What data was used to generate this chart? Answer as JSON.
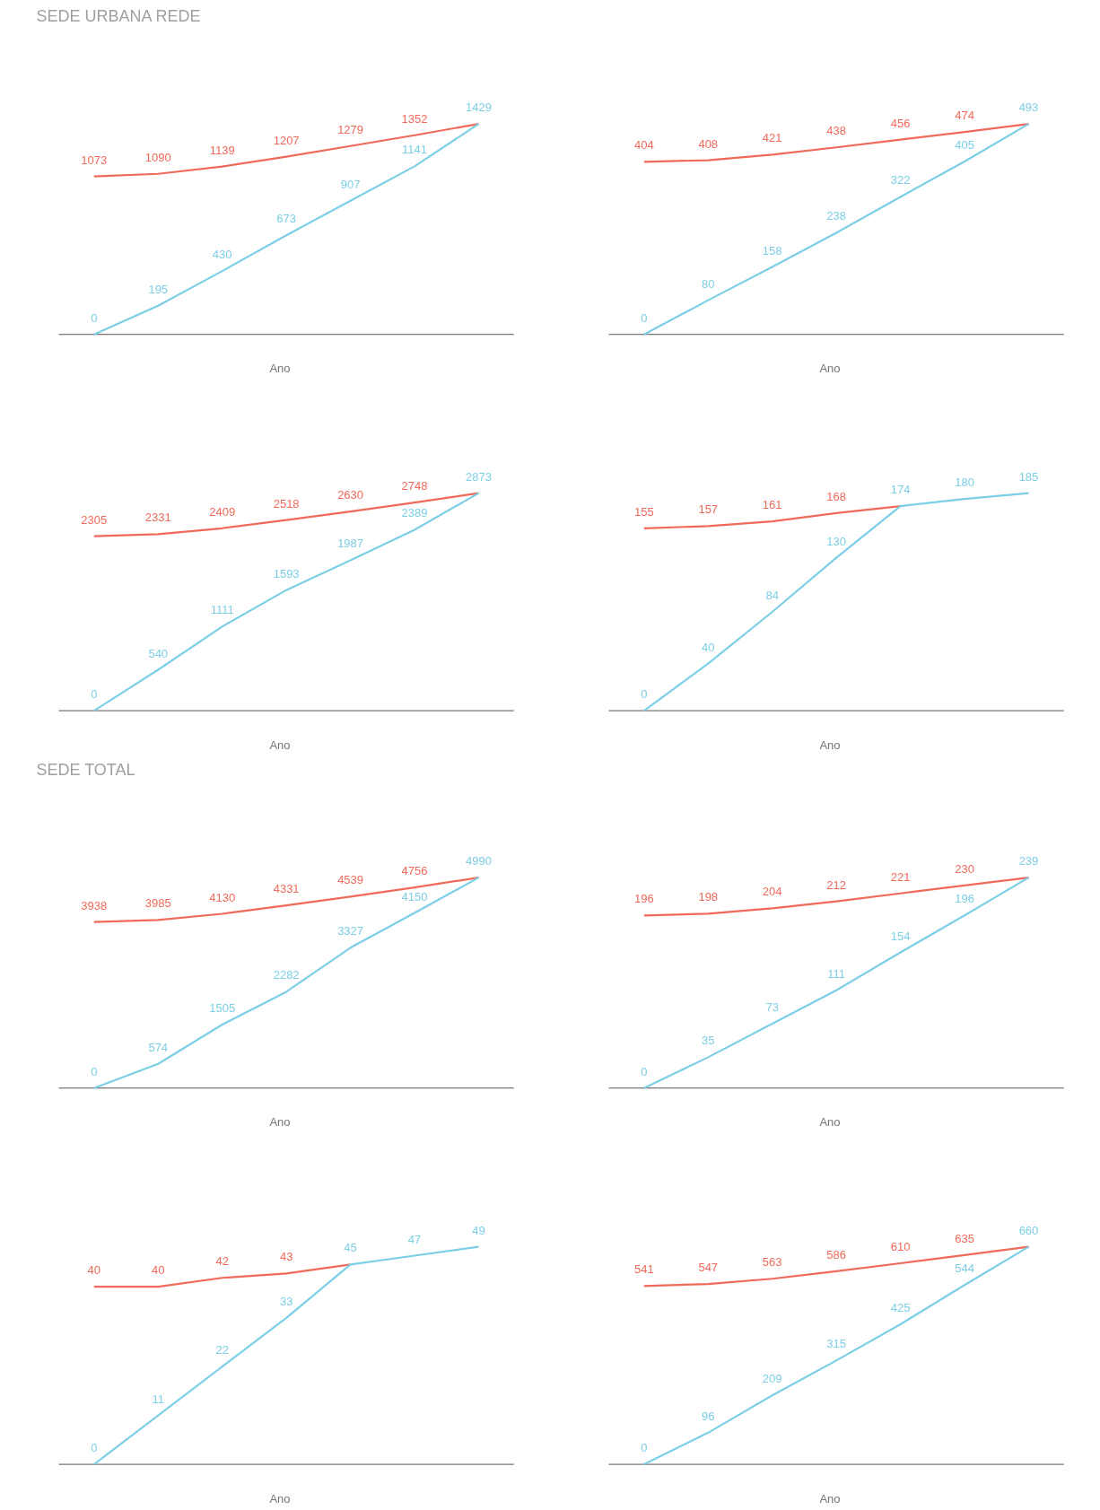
{
  "chart_data": [
    {
      "type": "line",
      "title": "SEDE URBANA REDE",
      "xlabel": "Ano",
      "categories": [
        null,
        null,
        null,
        null,
        null,
        null,
        null
      ],
      "series": [
        {
          "color": "#f0695a",
          "values": [
            1073,
            1090,
            1139,
            1207,
            1279,
            1352,
            1429
          ],
          "value_labels": [
            "1073",
            "1090",
            "1139",
            "1207",
            "1279",
            "1352",
            null
          ]
        },
        {
          "color": "#7ccfe6",
          "values": [
            0,
            195,
            430,
            673,
            907,
            1141,
            1429
          ],
          "value_labels": [
            "0",
            "195",
            "430",
            "673",
            "907",
            "1141",
            "1429"
          ]
        }
      ]
    },
    {
      "type": "line",
      "xlabel": "Ano",
      "categories": [
        null,
        null,
        null,
        null,
        null,
        null,
        null
      ],
      "series": [
        {
          "color": "#f0695a",
          "values": [
            404,
            408,
            421,
            438,
            456,
            474,
            493
          ],
          "value_labels": [
            "404",
            "408",
            "421",
            "438",
            "456",
            "474",
            null
          ]
        },
        {
          "color": "#7ccfe6",
          "values": [
            0,
            80,
            158,
            238,
            322,
            405,
            493
          ],
          "value_labels": [
            "0",
            "80",
            "158",
            "238",
            "322",
            "405",
            "493"
          ]
        }
      ]
    },
    {
      "type": "line",
      "xlabel": "Ano",
      "categories": [
        null,
        null,
        null,
        null,
        null,
        null,
        null
      ],
      "series": [
        {
          "color": "#f0695a",
          "values": [
            2305,
            2331,
            2409,
            2518,
            2630,
            2748,
            2873
          ],
          "value_labels": [
            "2305",
            "2331",
            "2409",
            "2518",
            "2630",
            "2748",
            null
          ]
        },
        {
          "color": "#7ccfe6",
          "values": [
            0,
            540,
            1111,
            1593,
            1987,
            2389,
            2873
          ],
          "value_labels": [
            "0",
            "540",
            "1111",
            "1593",
            "1987",
            "2389",
            "2873"
          ]
        }
      ]
    },
    {
      "type": "line",
      "xlabel": "Ano",
      "categories": [
        null,
        null,
        null,
        null,
        null,
        null,
        null
      ],
      "series": [
        {
          "color": "#f0695a",
          "values": [
            155,
            157,
            161,
            168,
            174,
            null,
            null
          ],
          "value_labels": [
            "155",
            "157",
            "161",
            "168",
            null,
            null,
            null
          ]
        },
        {
          "color": "#7ccfe6",
          "values": [
            0,
            40,
            84,
            130,
            174,
            180,
            185
          ],
          "value_labels": [
            "0",
            "40",
            "84",
            "130",
            "174",
            "180",
            "185"
          ]
        }
      ]
    },
    {
      "type": "line",
      "title": "SEDE TOTAL",
      "xlabel": "Ano",
      "categories": [
        null,
        null,
        null,
        null,
        null,
        null,
        null
      ],
      "series": [
        {
          "color": "#f0695a",
          "values": [
            3938,
            3985,
            4130,
            4331,
            4539,
            4756,
            4990
          ],
          "value_labels": [
            "3938",
            "3985",
            "4130",
            "4331",
            "4539",
            "4756",
            null
          ]
        },
        {
          "color": "#7ccfe6",
          "values": [
            0,
            574,
            1505,
            2282,
            3327,
            4150,
            4990
          ],
          "value_labels": [
            "0",
            "574",
            "1505",
            "2282",
            "3327",
            "4150",
            "4990"
          ]
        }
      ]
    },
    {
      "type": "line",
      "xlabel": "Ano",
      "categories": [
        null,
        null,
        null,
        null,
        null,
        null,
        null
      ],
      "series": [
        {
          "color": "#f0695a",
          "values": [
            196,
            198,
            204,
            212,
            221,
            230,
            239
          ],
          "value_labels": [
            "196",
            "198",
            "204",
            "212",
            "221",
            "230",
            null
          ]
        },
        {
          "color": "#7ccfe6",
          "values": [
            0,
            35,
            73,
            111,
            154,
            196,
            239
          ],
          "value_labels": [
            "0",
            "35",
            "73",
            "111",
            "154",
            "196",
            "239"
          ]
        }
      ]
    },
    {
      "type": "line",
      "xlabel": "Ano",
      "categories": [
        null,
        null,
        null,
        null,
        null,
        null,
        null
      ],
      "series": [
        {
          "color": "#f0695a",
          "values": [
            40,
            40,
            42,
            43,
            45,
            null,
            null
          ],
          "value_labels": [
            "40",
            "40",
            "42",
            "43",
            null,
            null,
            null
          ]
        },
        {
          "color": "#7ccfe6",
          "values": [
            0,
            11,
            22,
            33,
            45,
            47,
            49
          ],
          "value_labels": [
            "0",
            "11",
            "22",
            "33",
            "45",
            "47",
            "49"
          ]
        }
      ]
    },
    {
      "type": "line",
      "xlabel": "Ano",
      "categories": [
        null,
        null,
        null,
        null,
        null,
        null,
        null
      ],
      "series": [
        {
          "color": "#f0695a",
          "values": [
            541,
            547,
            563,
            586,
            610,
            635,
            660
          ],
          "value_labels": [
            "541",
            "547",
            "563",
            "586",
            "610",
            "635",
            null
          ]
        },
        {
          "color": "#7ccfe6",
          "values": [
            0,
            96,
            209,
            315,
            425,
            544,
            660
          ],
          "value_labels": [
            "0",
            "96",
            "209",
            "315",
            "425",
            "544",
            "660"
          ]
        }
      ]
    }
  ]
}
